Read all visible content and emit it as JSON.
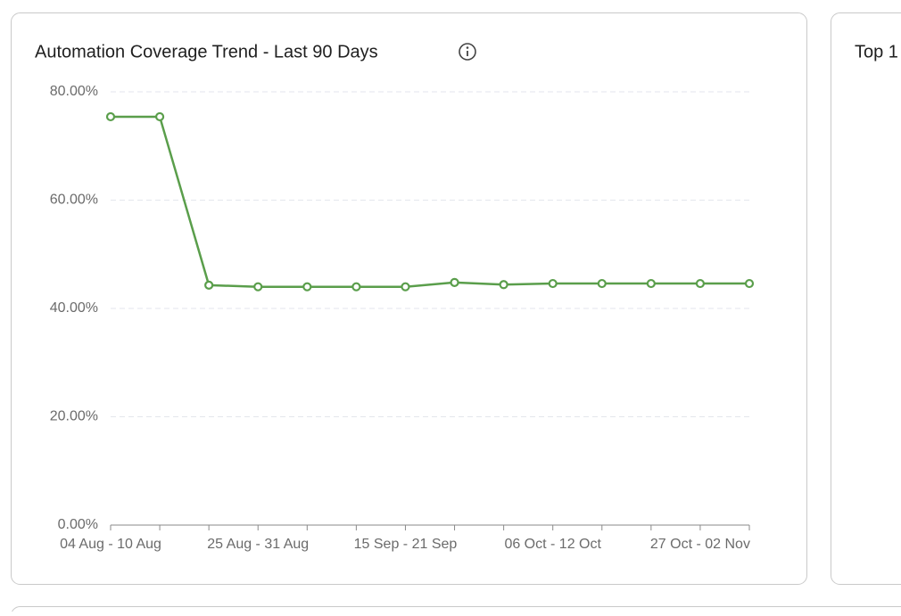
{
  "chart_data": {
    "type": "line",
    "title": "Automation Coverage Trend - Last 90 Days",
    "categories": [
      "04 Aug - 10 Aug",
      null,
      null,
      "25 Aug - 31 Aug",
      null,
      null,
      "15 Sep - 21 Sep",
      null,
      null,
      "06 Oct - 12 Oct",
      null,
      null,
      "27 Oct - 02 Nov",
      null
    ],
    "series": [
      {
        "name": "Automation Coverage",
        "color": "#5a9e4b",
        "values": [
          75.4,
          75.4,
          44.3,
          44.0,
          44.0,
          44.0,
          44.0,
          44.8,
          44.4,
          44.6,
          44.6,
          44.6,
          44.6,
          44.6
        ]
      }
    ],
    "ylim": [
      0,
      80
    ],
    "yticks": [
      {
        "value": 0,
        "label": "0.00%"
      },
      {
        "value": 20,
        "label": "20.00%"
      },
      {
        "value": 40,
        "label": "40.00%"
      },
      {
        "value": 60,
        "label": "60.00%"
      },
      {
        "value": 80,
        "label": "80.00%"
      }
    ],
    "grid": true
  },
  "side_card": {
    "title": "Top 1"
  }
}
